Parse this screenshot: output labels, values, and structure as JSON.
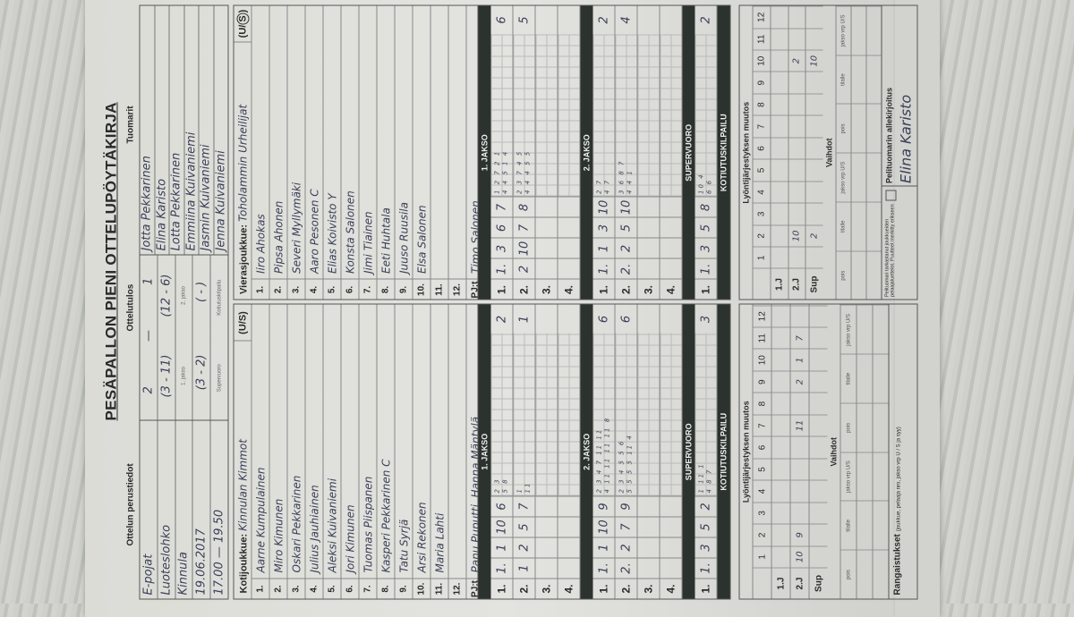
{
  "title": "PESÄPALLON PIENI OTTELUPÖYTÄKIRJA",
  "labels": {
    "basic": "Ottelun perustiedot",
    "result": "Ottelutulos",
    "referees": "Tuomarit"
  },
  "basic": [
    "E-pojat",
    "Luoteslohko",
    "Kinnula",
    "19.06.2017",
    "17.00 — 19.50"
  ],
  "result": {
    "final": [
      "2",
      "—",
      "1"
    ],
    "periods": [
      "(3 - 11)",
      "(12 - 6)"
    ],
    "period_labels": [
      "1. jakso",
      "2. jakso"
    ],
    "extra": [
      "(3 - 2)",
      "( - )"
    ],
    "extra_labels": [
      "Supervuoro",
      "Kotiutuskilpailu"
    ]
  },
  "referees": [
    "Jotta Pekkarinen",
    "Elina Karisto",
    "Lotta Pekkarinen",
    "Emmiina Kuivaniemi",
    "Jasmin Kuivaniemi",
    "Jenna Kuivaniemi"
  ],
  "home": {
    "header": "Kotijoukkue:",
    "name": "Kinnulan Kimmot",
    "us": "(U/S)",
    "players": [
      "Aarne Kumpulainen",
      "Miro Kimunen",
      "Oskari Pekkarinen",
      "Julius Jauhiainen",
      "Aleksi Kuivaniemi",
      "Jori Kimunen",
      "Tuomas Piispanen",
      "Kasperi Pekkarinen  C",
      "Tatu Syrjä",
      "Arsi Rekonen",
      "Maria Lahti",
      ""
    ],
    "pj_label": "PJ:t",
    "pj": "Panu Puputti, Hanna Mäntylä"
  },
  "visitor": {
    "header": "Vierasjoukkue:",
    "name": "Toholammin Urheilijat",
    "us": "(U/S)",
    "us_selected": "S",
    "players": [
      "Iiro Ahokas",
      "Pipsa Ahonen",
      "Severi Myllymäki",
      "Aaro Pesonen  C",
      "Elias Koivisto  Y",
      "Konsta Salonen",
      "Jimi Tiainen",
      "Eeti Huhtala",
      "Juuso Ruusila",
      "Elsa Salonen",
      "",
      ""
    ],
    "pj_label": "PJ:t",
    "pj": "Timo Salonen"
  },
  "periods": {
    "headers": [
      "1. JAKSO",
      "2. JAKSO",
      "SUPERVUORO",
      "KOTIUTUSKILPAILU"
    ],
    "home": [
      [
        {
          "label": "1.",
          "inning": "1.",
          "nums": [
            "1",
            "10",
            "6"
          ],
          "small": [
            "2 3",
            "5 8"
          ],
          "score": "2"
        },
        {
          "label": "2.",
          "inning": "1",
          "nums": [
            "2",
            "5",
            "7"
          ],
          "small": [
            "1",
            "11"
          ],
          "score": "1"
        },
        {
          "label": "3."
        },
        {
          "label": "4."
        }
      ],
      [
        {
          "label": "1.",
          "inning": "1.",
          "nums": [
            "1",
            "10",
            "9"
          ],
          "small": [
            "2 3 4 7 11 11",
            "4 11 11 11 11 8"
          ],
          "score": "6"
        },
        {
          "label": "2.",
          "inning": "2.",
          "nums": [
            "2",
            "7",
            "9"
          ],
          "small": [
            "2 3 4 5 5 6",
            "5 5 5 5 11 4"
          ],
          "score": "6"
        },
        {
          "label": "3."
        },
        {
          "label": "4."
        }
      ],
      [
        {
          "label": "1.",
          "inning": "1.",
          "nums": [
            "3",
            "5",
            "2"
          ],
          "small": [
            "1 11 1",
            "4 8 7"
          ],
          "score": "3"
        }
      ]
    ],
    "visitor": [
      [
        {
          "label": "1.",
          "inning": "1.",
          "nums": [
            "3",
            "6",
            "7"
          ],
          "small": [
            "1 2 7 2 1",
            "4 4 5 1 4"
          ],
          "score": "6"
        },
        {
          "label": "2.",
          "inning": "2",
          "nums": [
            "10",
            "7",
            "8"
          ],
          "small": [
            "2 3 7 4 5",
            "4 4 4 5 5"
          ],
          "score": "5"
        },
        {
          "label": "3."
        },
        {
          "label": "4."
        }
      ],
      [
        {
          "label": "1.",
          "inning": "1.",
          "nums": [
            "1",
            "3",
            "10"
          ],
          "small": [
            "2 7",
            "4 7"
          ],
          "score": "2"
        },
        {
          "label": "2.",
          "inning": "2.",
          "nums": [
            "2",
            "5",
            "10"
          ],
          "small": [
            "3 6 8 7",
            "4 4 1"
          ],
          "score": "4"
        },
        {
          "label": "3."
        },
        {
          "label": "4."
        }
      ],
      [
        {
          "label": "1.",
          "inning": "1.",
          "nums": [
            "3",
            "5",
            "8"
          ],
          "small": [
            "10 4",
            "6 6"
          ],
          "score": "2"
        }
      ]
    ]
  },
  "lineup": {
    "title": "Lyöntijärjestyksen muutos",
    "cols": [
      "1",
      "2",
      "3",
      "4",
      "5",
      "6",
      "7",
      "8",
      "9",
      "10",
      "11",
      "12"
    ],
    "home": [
      {
        "label": "1.J",
        "vals": [
          "",
          "",
          "",
          "",
          "",
          "",
          "",
          "",
          "",
          "",
          "",
          ""
        ]
      },
      {
        "label": "2.J",
        "vals": [
          "10",
          "9",
          "",
          "",
          "",
          "",
          "11",
          "",
          "2",
          "1",
          "7",
          ""
        ]
      },
      {
        "label": "Sup",
        "vals": [
          "",
          "",
          "",
          "",
          "",
          "",
          "",
          "",
          "",
          "",
          "",
          ""
        ]
      }
    ],
    "visitor": [
      {
        "label": "1.J",
        "vals": [
          "",
          "",
          "",
          "",
          "",
          "",
          "",
          "",
          "",
          "",
          "",
          ""
        ]
      },
      {
        "label": "2.J",
        "vals": [
          "",
          "10",
          "",
          "",
          "",
          "",
          "",
          "",
          "",
          "2",
          "",
          ""
        ]
      },
      {
        "label": "Sup",
        "vals": [
          "",
          "2",
          "",
          "",
          "",
          "",
          "",
          "",
          "",
          "10",
          "",
          ""
        ]
      }
    ]
  },
  "subs": {
    "title": "Vaihdot",
    "cols": [
      "pois",
      "tilalle",
      "jakso vrp U/S",
      "pois",
      "tilalle",
      "jakso vrp U/S"
    ]
  },
  "penalties": {
    "label": "Rangaistukset",
    "note": "(joukkue, pelaaja nro, jakso vrp U / S ja syy)"
  },
  "signature": {
    "check_text": "Pelituomari tarkastanut joukkueiden pelaajaluettelot. Puutteet merkitty erikseen",
    "label": "Pelituomarin allekirjoitus",
    "value": "Elina Karisto"
  },
  "colors": {
    "ink": "#3b3f58",
    "bar": "#2c332f",
    "paper": "#e3e3df"
  }
}
